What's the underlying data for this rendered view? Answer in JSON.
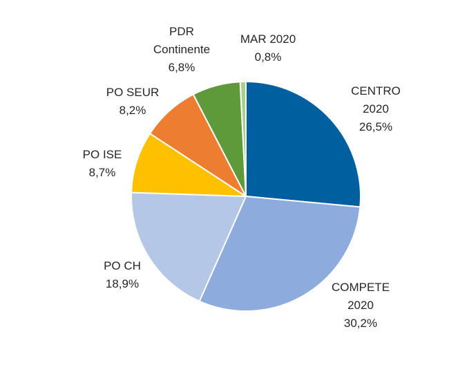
{
  "chart_data": {
    "type": "pie",
    "title": "",
    "slices": [
      {
        "label_lines": [
          "CENTRO",
          "2020"
        ],
        "value": 26.5,
        "value_label": "26,5%",
        "color": "#00609f"
      },
      {
        "label_lines": [
          "COMPETE",
          "2020"
        ],
        "value": 30.2,
        "value_label": "30,2%",
        "color": "#8eabdd"
      },
      {
        "label_lines": [
          "PO CH"
        ],
        "value": 18.9,
        "value_label": "18,9%",
        "color": "#b4c7e7"
      },
      {
        "label_lines": [
          "PO ISE"
        ],
        "value": 8.7,
        "value_label": "8,7%",
        "color": "#ffc000"
      },
      {
        "label_lines": [
          "PO SEUR"
        ],
        "value": 8.2,
        "value_label": "8,2%",
        "color": "#ed7d31"
      },
      {
        "label_lines": [
          "PDR",
          "Continente"
        ],
        "value": 6.8,
        "value_label": "6,8%",
        "color": "#5f9a3a"
      },
      {
        "label_lines": [
          "MAR 2020"
        ],
        "value": 0.8,
        "value_label": "0,8%",
        "color": "#a9d18e"
      }
    ]
  }
}
